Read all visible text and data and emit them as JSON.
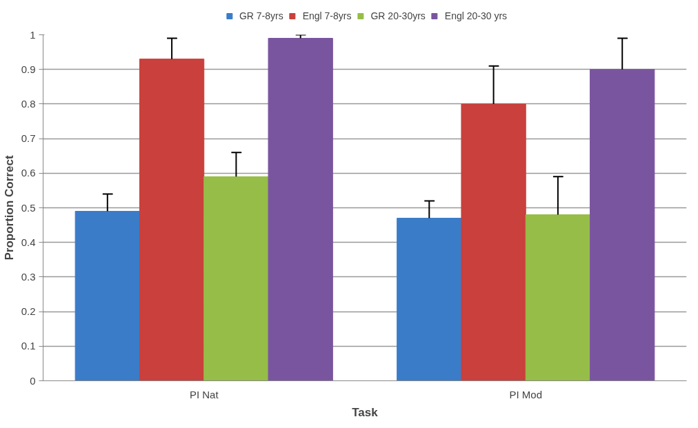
{
  "chart_data": {
    "type": "bar",
    "xlabel": "Task",
    "ylabel": "Proportion Correct",
    "categories": [
      "PI Nat",
      "PI Mod"
    ],
    "series": [
      {
        "name": "GR 7-8yrs",
        "color": "#3b7cc8",
        "values": [
          0.49,
          0.47
        ],
        "errors": [
          [
            0.49,
            0.54
          ],
          [
            0.47,
            0.52
          ]
        ]
      },
      {
        "name": "Engl 7-8yrs",
        "color": "#c9403c",
        "values": [
          0.93,
          0.8
        ],
        "errors": [
          [
            0.93,
            0.99
          ],
          [
            0.8,
            0.91
          ]
        ]
      },
      {
        "name": "GR 20-30yrs",
        "color": "#96bd47",
        "values": [
          0.59,
          0.48
        ],
        "errors": [
          [
            0.59,
            0.66
          ],
          [
            0.48,
            0.59
          ]
        ]
      },
      {
        "name": "Engl 20-30 yrs",
        "color": "#7a559f",
        "values": [
          0.99,
          0.9
        ],
        "errors": [
          [
            0.99,
            1.0
          ],
          [
            0.9,
            0.99
          ]
        ]
      }
    ],
    "ylim": [
      0,
      1
    ],
    "yticks": [
      0,
      0.1,
      0.2,
      0.3,
      0.4,
      0.5,
      0.6,
      0.7,
      0.8,
      0.9,
      1
    ],
    "grid": "y",
    "legend": "top"
  }
}
